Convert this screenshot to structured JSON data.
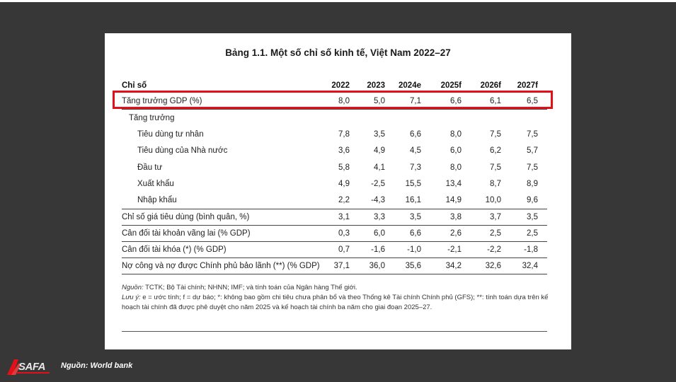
{
  "document": {
    "title": "Bảng 1.1. Một số chỉ số kinh tế, Việt Nam 2022–27",
    "header": {
      "label": "Chỉ số",
      "years": [
        "2022",
        "2023",
        "2024e",
        "2025f",
        "2026f",
        "2027f"
      ]
    },
    "rows": [
      {
        "label": "Tăng trưởng GDP (%)",
        "values": [
          "8,0",
          "5,0",
          "7,1",
          "6,6",
          "6,1",
          "6,5"
        ]
      },
      {
        "label": "Tăng trưởng",
        "values": [
          "",
          "",
          "",
          "",
          "",
          ""
        ]
      },
      {
        "label": "Tiêu dùng tư nhân",
        "values": [
          "7,8",
          "3,5",
          "6,6",
          "8,0",
          "7,5",
          "7,5"
        ]
      },
      {
        "label": "Tiêu dùng của Nhà nước",
        "values": [
          "3,6",
          "4,9",
          "4,5",
          "6,0",
          "6,2",
          "5,7"
        ]
      },
      {
        "label": "Đầu tư",
        "values": [
          "5,8",
          "4,1",
          "7,3",
          "8,0",
          "7,5",
          "7,5"
        ]
      },
      {
        "label": "Xuất khẩu",
        "values": [
          "4,9",
          "-2,5",
          "15,5",
          "13,4",
          "8,7",
          "8,9"
        ]
      },
      {
        "label": "Nhập khẩu",
        "values": [
          "2,2",
          "-4,3",
          "16,1",
          "14,9",
          "10,0",
          "9,6"
        ]
      },
      {
        "label": "Chỉ số giá tiêu dùng (bình quân, %)",
        "values": [
          "3,1",
          "3,3",
          "3,5",
          "3,8",
          "3,7",
          "3,5"
        ]
      },
      {
        "label": "Cân đối tài khoản vãng lai (% GDP)",
        "values": [
          "0,3",
          "6,0",
          "6,6",
          "2,6",
          "2,5",
          "2,5"
        ]
      },
      {
        "label": "Cân đối tài khóa (*) (% GDP)",
        "values": [
          "0,7",
          "-1,6",
          "-1,0",
          "-2,1",
          "-2,2",
          "-1,8"
        ]
      },
      {
        "label": "Nợ công và nợ được Chính phủ bảo lãnh (**) (% GDP)",
        "values": [
          "37,1",
          "36,0",
          "35,6",
          "34,2",
          "32,6",
          "32,4"
        ]
      }
    ],
    "notes": {
      "source_label": "Nguồn:",
      "source_text": " TCTK; Bộ Tài chính; NHNN; IMF; và tính toán của Ngân hàng Thế giới.",
      "note_label": "Lưu ý:",
      "note_text": " e = ước tính; f = dự báo; *: không bao gồm chi tiêu chưa phân bổ và theo Thống kê Tài chính Chính phủ (GFS); **: tính toán dựa trên kế hoạch tài chính đã được phê duyệt cho năm 2025 và kế hoạch tài chính ba năm cho giai đoạn 2025–27."
    }
  },
  "footer": {
    "logo_text": "SAFA",
    "caption": "Nguồn: World bank"
  },
  "colors": {
    "background": "#373737",
    "paper": "#ffffff",
    "highlight": "#e3101a"
  }
}
